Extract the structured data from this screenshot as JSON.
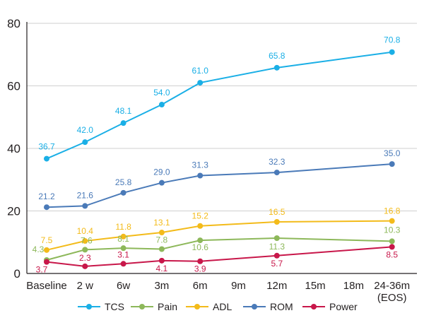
{
  "chart_data": {
    "type": "line",
    "categories": [
      "Baseline",
      "2 w",
      "6w",
      "3m",
      "6m",
      "9m",
      "12m",
      "15m",
      "18m",
      "24-36m\n(EOS)"
    ],
    "ylim": [
      0,
      80
    ],
    "yticks": [
      0,
      20,
      40,
      60,
      80
    ],
    "grid": "horizontal",
    "legend_position": "bottom",
    "series": [
      {
        "name": "TCS",
        "color": "#1aafe6",
        "points": [
          [
            0,
            36.7
          ],
          [
            1,
            42.0
          ],
          [
            2,
            48.1
          ],
          [
            3,
            54.0
          ],
          [
            4,
            61.0
          ],
          [
            6,
            65.8
          ],
          [
            9,
            70.8
          ]
        ],
        "labels": [
          "36.7",
          "42.0",
          "48.1",
          "54.0",
          "61.0",
          "65.8",
          "70.8"
        ]
      },
      {
        "name": "Pain",
        "color": "#8db85a",
        "points": [
          [
            0,
            4.3
          ],
          [
            1,
            7.6
          ],
          [
            2,
            8.1
          ],
          [
            3,
            7.8
          ],
          [
            4,
            10.6
          ],
          [
            6,
            11.3
          ],
          [
            9,
            10.3
          ]
        ],
        "labels": [
          "4.3",
          "7.6",
          "8.1",
          "7.8",
          "10.6",
          "11.3",
          "10.3"
        ]
      },
      {
        "name": "ADL",
        "color": "#f3bb1a",
        "points": [
          [
            0,
            7.5
          ],
          [
            1,
            10.4
          ],
          [
            2,
            11.8
          ],
          [
            3,
            13.1
          ],
          [
            4,
            15.2
          ],
          [
            6,
            16.5
          ],
          [
            9,
            16.8
          ]
        ],
        "labels": [
          "7.5",
          "10.4",
          "11.8",
          "13.1",
          "15.2",
          "16.5",
          "16.8"
        ]
      },
      {
        "name": "ROM",
        "color": "#4a7ab8",
        "points": [
          [
            0,
            21.2
          ],
          [
            1,
            21.6
          ],
          [
            2,
            25.8
          ],
          [
            3,
            29.0
          ],
          [
            4,
            31.3
          ],
          [
            6,
            32.3
          ],
          [
            9,
            35.0
          ]
        ],
        "labels": [
          "21.2",
          "21.6",
          "25.8",
          "29.0",
          "31.3",
          "32.3",
          "35.0"
        ]
      },
      {
        "name": "Power",
        "color": "#c8174a",
        "points": [
          [
            0,
            3.7
          ],
          [
            1,
            2.3
          ],
          [
            2,
            3.1
          ],
          [
            3,
            4.1
          ],
          [
            4,
            3.9
          ],
          [
            6,
            5.7
          ],
          [
            9,
            8.5
          ]
        ],
        "labels": [
          "3.7",
          "2.3",
          "3.1",
          "4.1",
          "3.9",
          "5.7",
          "8.5"
        ]
      }
    ]
  }
}
